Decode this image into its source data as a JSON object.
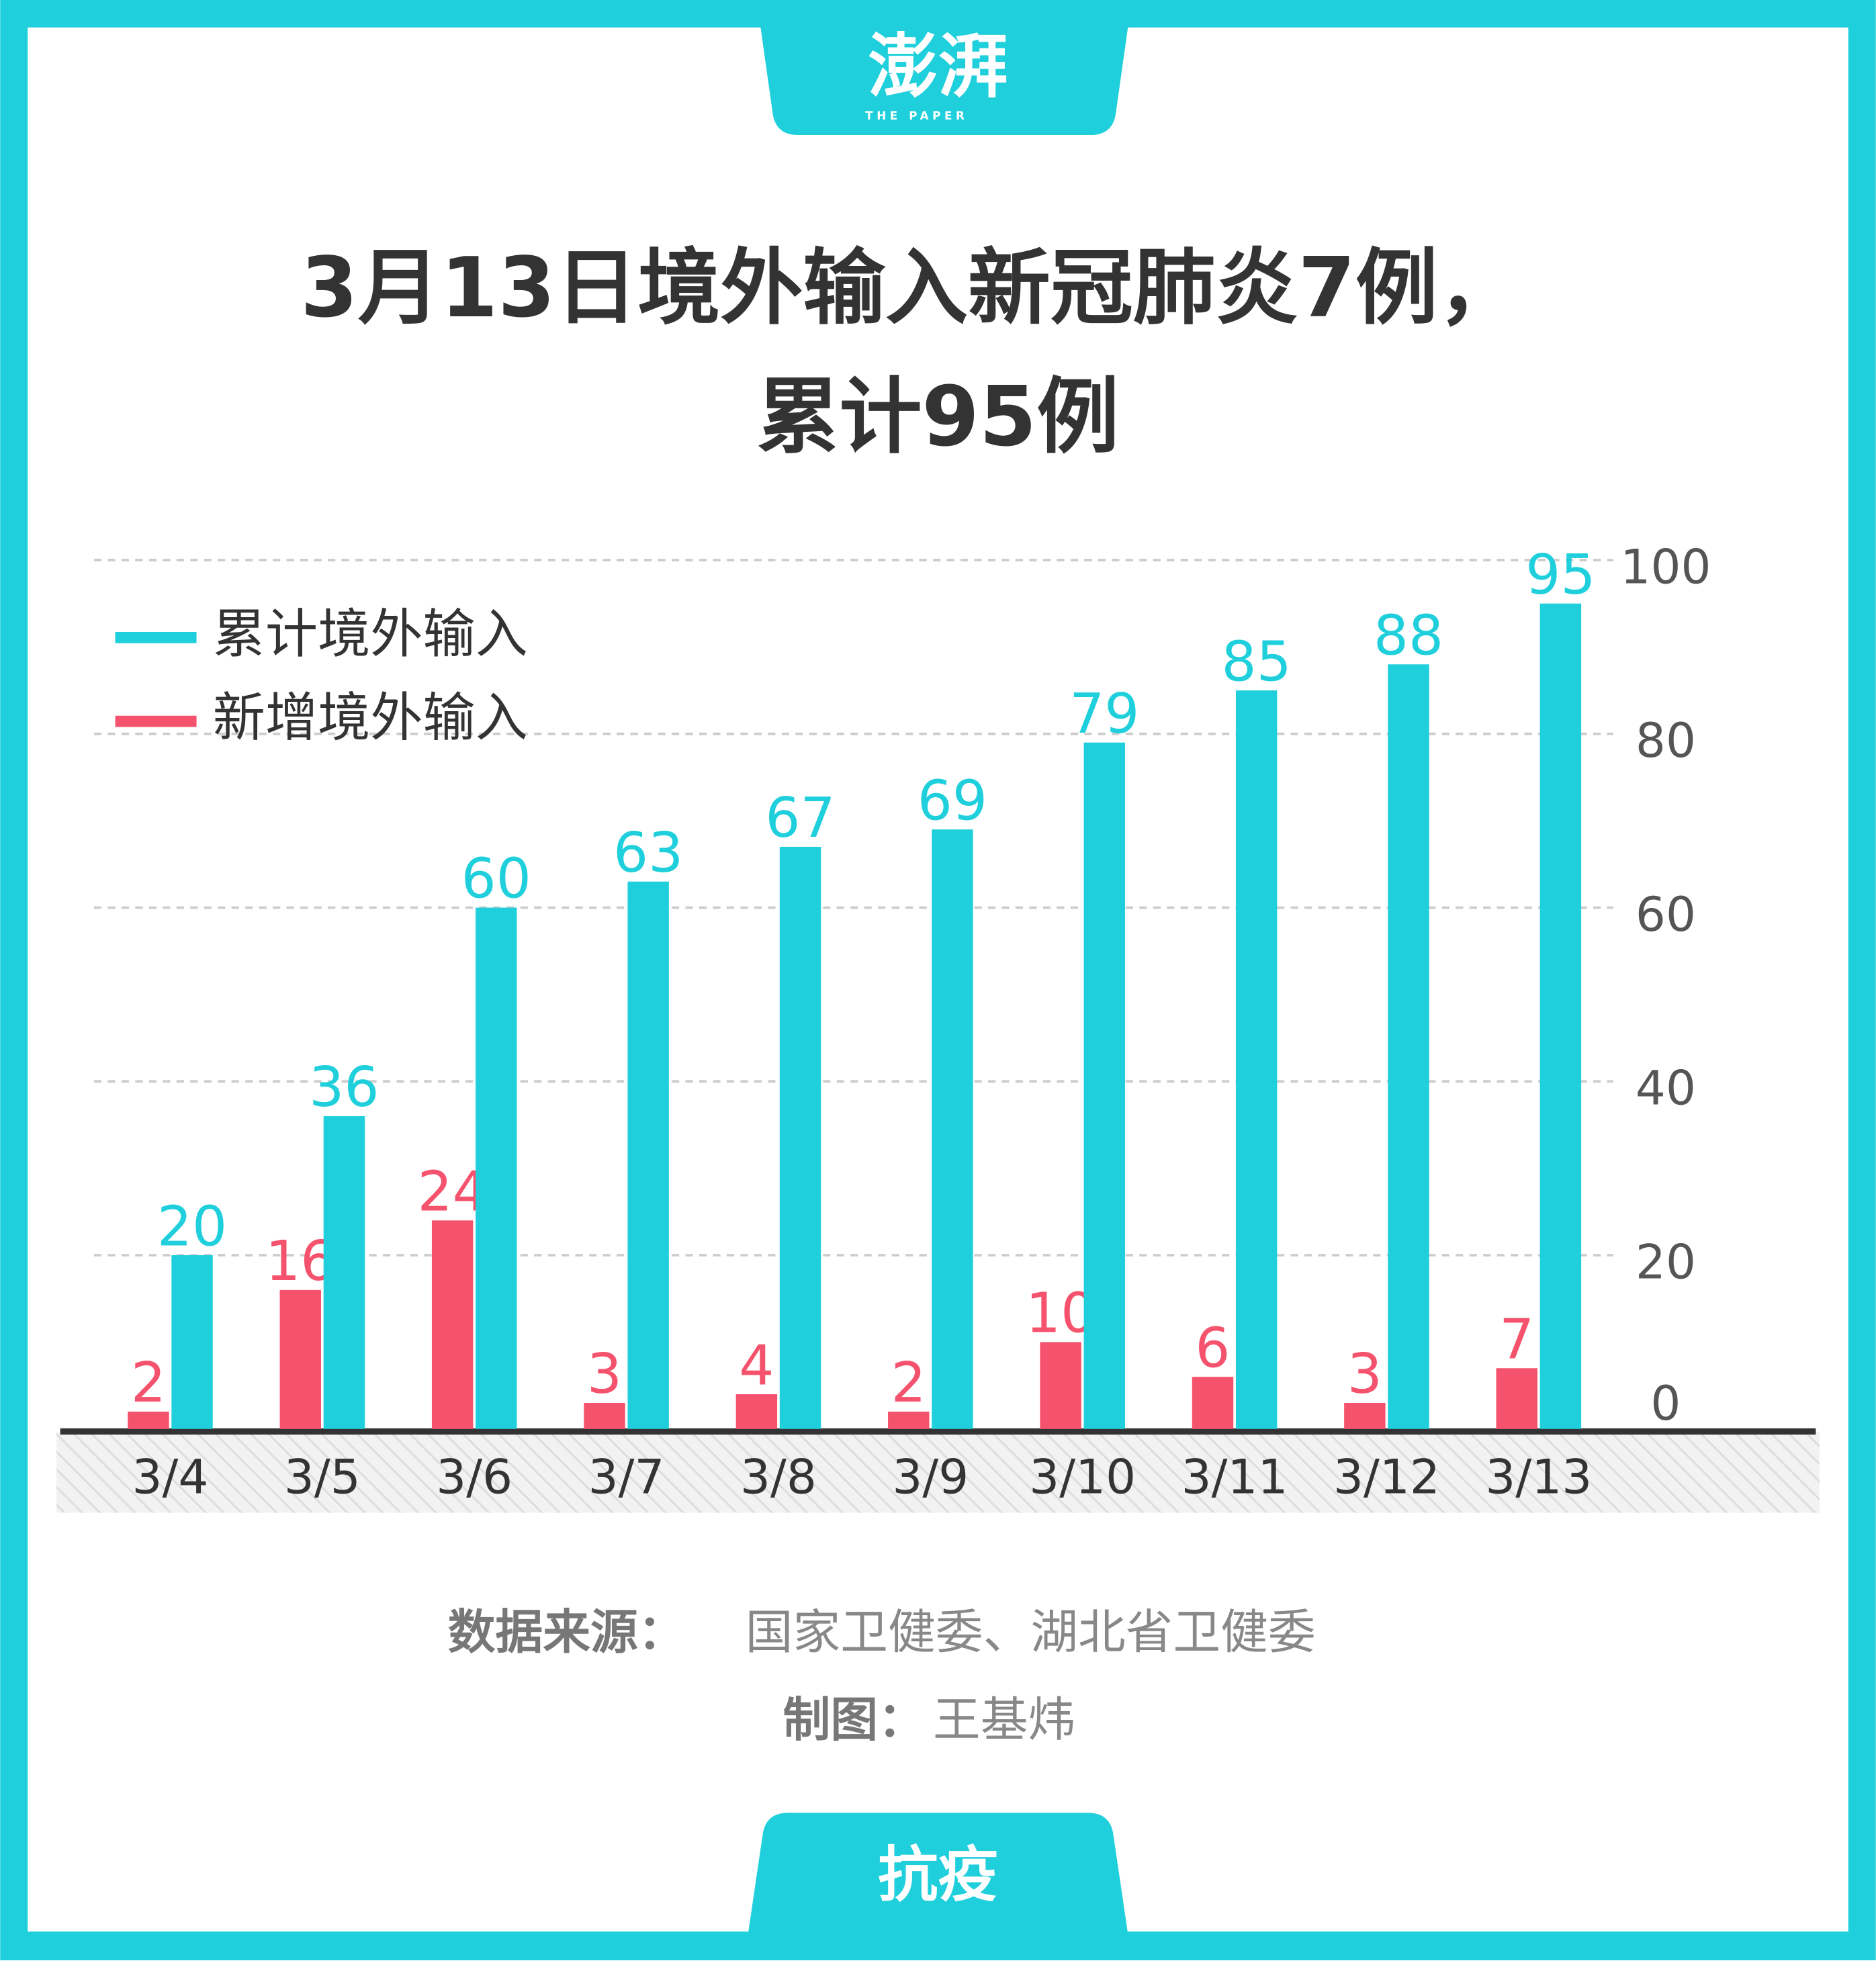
{
  "header": {
    "logo": "澎湃",
    "logo_sub": "THE PAPER"
  },
  "chart_data": {
    "type": "bar",
    "title": [
      "3月13日境外输入新冠肺炎7例，",
      "累计95例"
    ],
    "categories": [
      "3/4",
      "3/5",
      "3/6",
      "3/7",
      "3/8",
      "3/9",
      "3/10",
      "3/11",
      "3/12",
      "3/13"
    ],
    "series": [
      {
        "name": "新增境外输入",
        "color": "#f5536d",
        "values": [
          2,
          16,
          24,
          3,
          4,
          2,
          10,
          6,
          3,
          7
        ]
      },
      {
        "name": "累计境外输入",
        "color": "#1fd0dc",
        "values": [
          20,
          36,
          60,
          63,
          67,
          69,
          79,
          85,
          88,
          95
        ]
      }
    ],
    "ylim": [
      0,
      100
    ],
    "yticks": [
      0,
      20,
      40,
      60,
      80,
      100
    ],
    "grid": true,
    "legend": "top-left"
  },
  "source": {
    "label": "数据来源：",
    "text": "国家卫健委、湖北省卫健委"
  },
  "credit": {
    "label": "制图：",
    "text": "王基炜"
  },
  "footer": {
    "tag": "抗疫"
  }
}
